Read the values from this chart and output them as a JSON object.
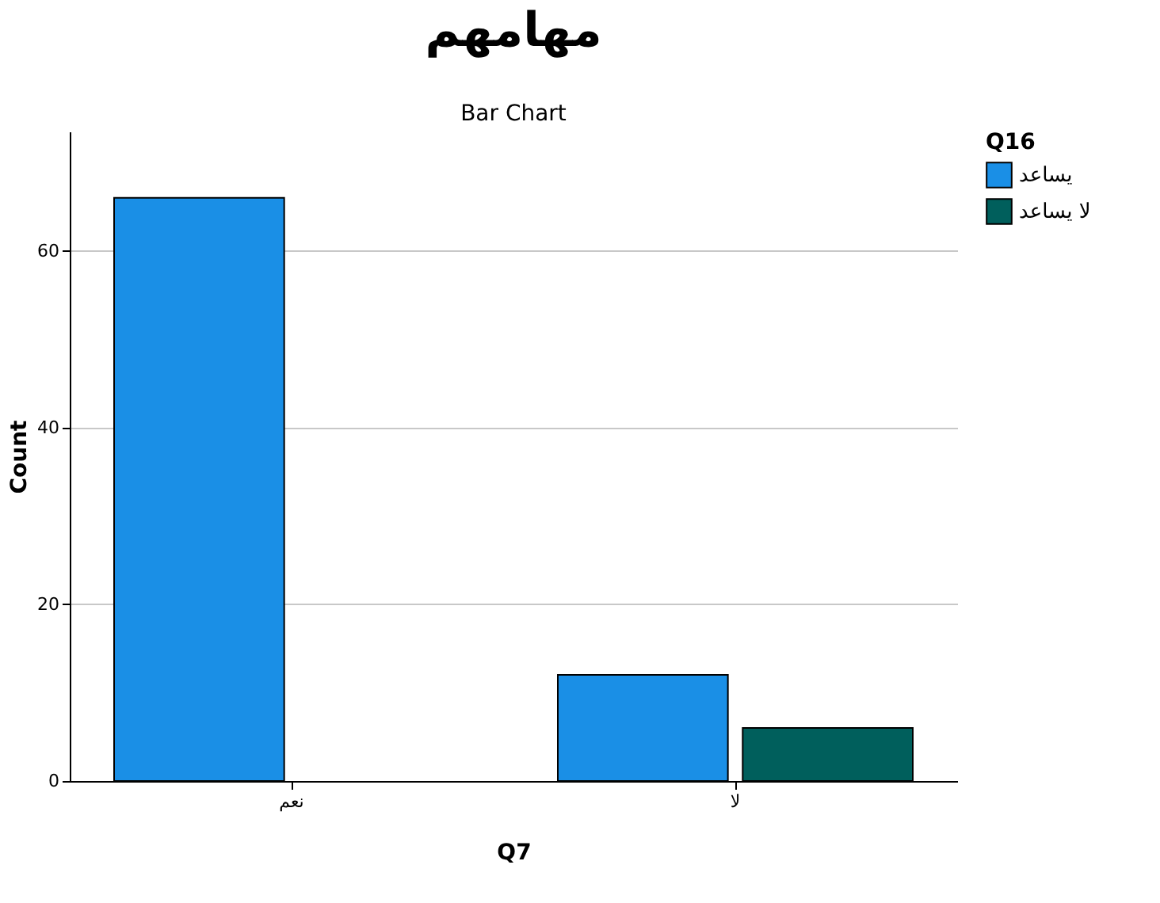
{
  "chart_data": {
    "type": "bar",
    "title": "مهامهم",
    "subtitle": "Bar Chart",
    "xlabel": "Q7",
    "ylabel": "Count",
    "legend_title": "Q16",
    "categories": [
      "نعم",
      "لا"
    ],
    "series": [
      {
        "name": "يساعد",
        "color": "#1a8fe6",
        "values": [
          66,
          12
        ]
      },
      {
        "name": "لا يساعد",
        "color": "#005f5c",
        "values": [
          null,
          6
        ]
      }
    ],
    "ylim": [
      0,
      73.5
    ],
    "yticks": [
      0,
      20,
      40,
      60
    ],
    "grid": "y",
    "legend": "top right"
  }
}
